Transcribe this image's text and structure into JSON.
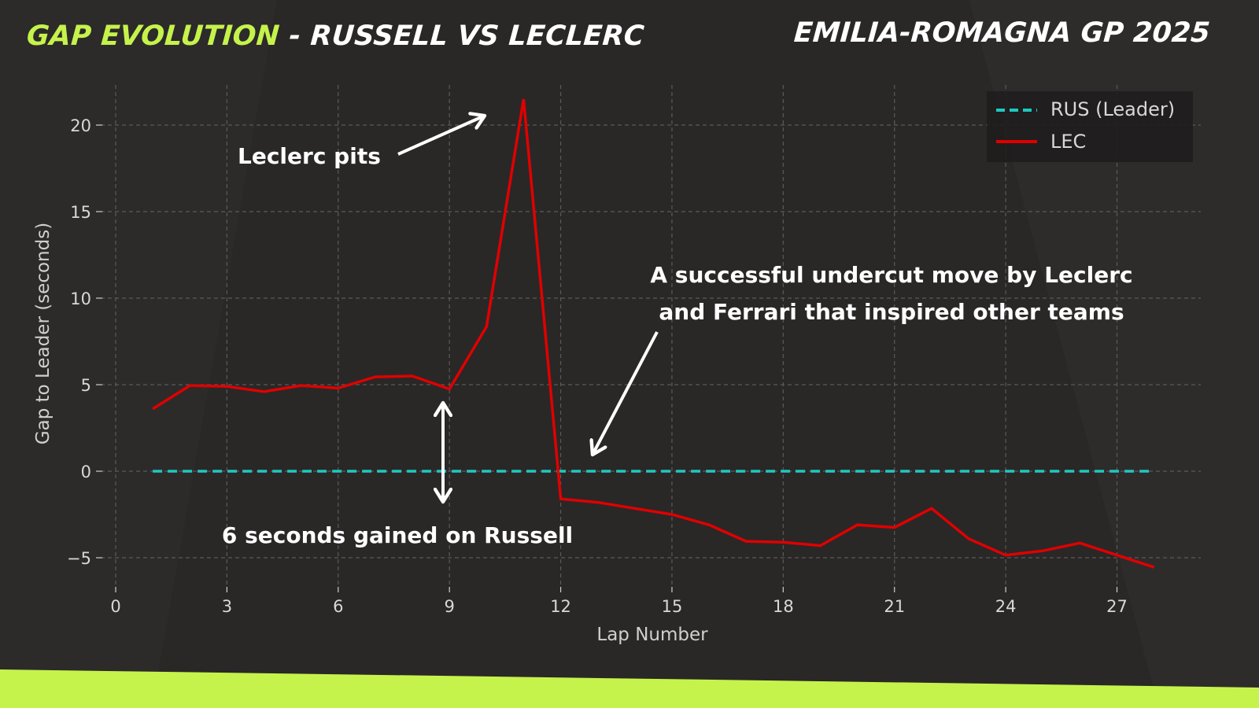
{
  "header": {
    "title_accent": "GAP EVOLUTION",
    "title_rest": " - RUSSELL VS LECLERC",
    "event": "EMILIA-ROMAGNA GP 2025"
  },
  "colors": {
    "background": "#2a2727",
    "accent": "#c5f34b",
    "rus": "#1ec8c0",
    "lec": "#e00000",
    "grid": "#5a5a5a",
    "legend_bg": "#1f1d1d",
    "text": "#ffffff"
  },
  "annotations": {
    "pit": "Leclerc pits",
    "gain": "6 seconds gained on Russell",
    "undercut_line1": "A successful undercut move by Leclerc",
    "undercut_line2": "and Ferrari that inspired other teams"
  },
  "legend": {
    "items": [
      {
        "label": "RUS (Leader)",
        "style": "dashed",
        "color": "#1ec8c0"
      },
      {
        "label": "LEC",
        "style": "solid",
        "color": "#e00000"
      }
    ]
  },
  "chart_data": {
    "type": "line",
    "title": "GAP EVOLUTION - RUSSELL VS LECLERC",
    "subtitle": "EMILIA-ROMAGNA GP 2025",
    "xlabel": "Lap Number",
    "ylabel": "Gap to Leader (seconds)",
    "xlim": [
      0,
      29
    ],
    "ylim": [
      -7,
      22.5
    ],
    "xticks": [
      0,
      3,
      6,
      9,
      12,
      15,
      18,
      21,
      24,
      27
    ],
    "yticks": [
      -5,
      0,
      5,
      10,
      15,
      20
    ],
    "ytick_labels": [
      "−5",
      "0",
      "5",
      "10",
      "15",
      "20"
    ],
    "grid": true,
    "legend_position": "upper right",
    "x": [
      1,
      2,
      3,
      4,
      5,
      6,
      7,
      8,
      9,
      10,
      11,
      12,
      13,
      14,
      15,
      16,
      17,
      18,
      19,
      20,
      21,
      22,
      23,
      24,
      25,
      26,
      27,
      28
    ],
    "series": [
      {
        "name": "RUS (Leader)",
        "style": "dashed",
        "color": "#1ec8c0",
        "values": [
          0,
          0,
          0,
          0,
          0,
          0,
          0,
          0,
          0,
          0,
          0,
          0,
          0,
          0,
          0,
          0,
          0,
          0,
          0,
          0,
          0,
          0,
          0,
          0,
          0,
          0,
          0,
          0
        ]
      },
      {
        "name": "LEC",
        "style": "solid",
        "color": "#e00000",
        "values": [
          3.6,
          4.95,
          4.9,
          4.6,
          4.95,
          4.8,
          5.45,
          5.5,
          4.75,
          8.35,
          21.5,
          -1.6,
          -1.8,
          -2.15,
          -2.5,
          -3.1,
          -4.05,
          -4.1,
          -4.3,
          -3.1,
          -3.25,
          -2.15,
          -3.9,
          -4.85,
          -4.6,
          -4.15,
          -4.85,
          -5.55
        ]
      }
    ],
    "annotations": [
      {
        "text": "Leclerc pits",
        "points_to": {
          "x": 10.5,
          "y": 20.5
        }
      },
      {
        "text": "6 seconds gained on Russell",
        "double_arrow_between": {
          "x": 8.8,
          "y_top": 4.2,
          "y_bottom": -1.8
        }
      },
      {
        "text": "A successful undercut move by Leclerc and Ferrari that inspired other teams",
        "points_to": {
          "x": 12.8,
          "y": 0.8
        }
      }
    ]
  }
}
